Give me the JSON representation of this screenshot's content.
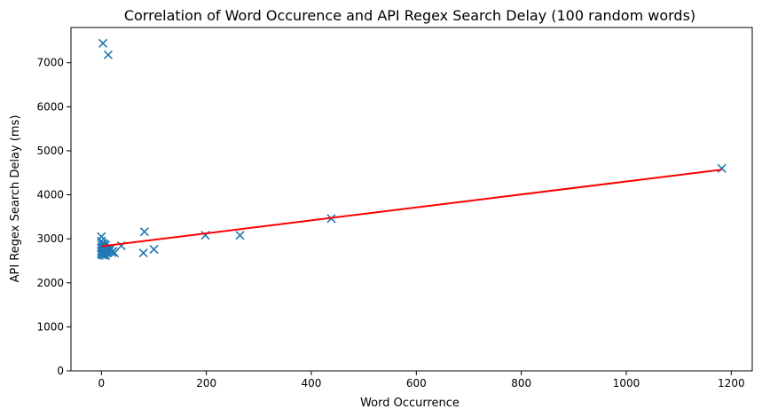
{
  "chart_data": {
    "type": "scatter",
    "title": "Correlation of Word Occurence and API Regex Search Delay (100 random words)",
    "xlabel": "Word Occurrence",
    "ylabel": "API Regex Search Delay (ms)",
    "xlim": [
      -58,
      1240
    ],
    "ylim": [
      0,
      7800
    ],
    "xticks": [
      0,
      200,
      400,
      600,
      800,
      1000,
      1200
    ],
    "yticks": [
      0,
      1000,
      2000,
      3000,
      4000,
      5000,
      6000,
      7000
    ],
    "grid": false,
    "marker": "x",
    "series": [
      {
        "color": "#1f77b4",
        "points": [
          [
            3,
            7440
          ],
          [
            13,
            7180
          ],
          [
            0,
            3050
          ],
          [
            0,
            2950
          ],
          [
            2,
            2900
          ],
          [
            5,
            2880
          ],
          [
            8,
            2860
          ],
          [
            1,
            2850
          ],
          [
            3,
            2820
          ],
          [
            6,
            2800
          ],
          [
            0,
            2790
          ],
          [
            2,
            2780
          ],
          [
            9,
            2770
          ],
          [
            12,
            2760
          ],
          [
            4,
            2750
          ],
          [
            1,
            2740
          ],
          [
            7,
            2730
          ],
          [
            15,
            2720
          ],
          [
            0,
            2710
          ],
          [
            3,
            2700
          ],
          [
            5,
            2690
          ],
          [
            10,
            2680
          ],
          [
            2,
            2670
          ],
          [
            0,
            2660
          ],
          [
            6,
            2650
          ],
          [
            1,
            2640
          ],
          [
            4,
            2630
          ],
          [
            8,
            2620
          ],
          [
            11,
            2700
          ],
          [
            14,
            2740
          ],
          [
            18,
            2780
          ],
          [
            20,
            2690
          ],
          [
            22,
            2720
          ],
          [
            25,
            2680
          ],
          [
            38,
            2840
          ],
          [
            82,
            3160
          ],
          [
            80,
            2680
          ],
          [
            100,
            2760
          ],
          [
            198,
            3080
          ],
          [
            264,
            3080
          ],
          [
            438,
            3460
          ],
          [
            1182,
            4600
          ]
        ]
      },
      {
        "color": "#ff0000",
        "type": "line",
        "points": [
          [
            0,
            2830
          ],
          [
            1182,
            4570
          ]
        ]
      }
    ]
  }
}
